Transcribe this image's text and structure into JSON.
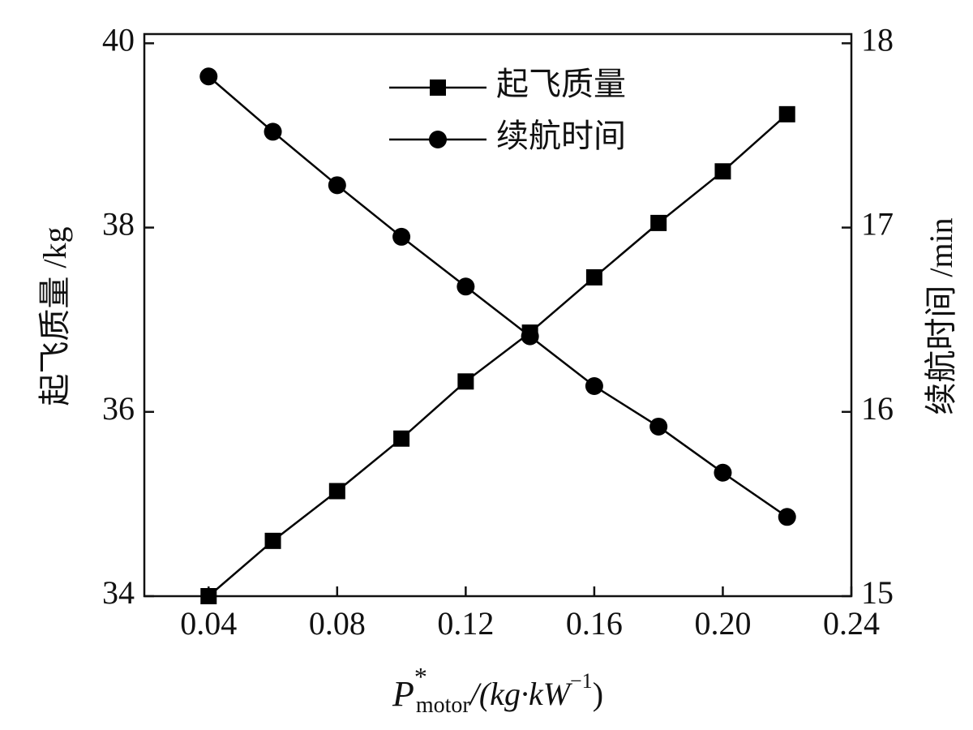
{
  "chart_data": {
    "type": "line",
    "xlabel": {
      "base": "P",
      "sup": "*",
      "sub": "motor",
      "unit": "/(kg·kW",
      "unit_sup": "−1",
      "close": ")"
    },
    "ylabel": "起飞质量 /kg",
    "y2label": "续航时间 /min",
    "x": [
      0.04,
      0.06,
      0.08,
      0.1,
      0.12,
      0.14,
      0.16,
      0.18,
      0.2,
      0.22
    ],
    "series": [
      {
        "name": "起飞质量",
        "color": "#000000",
        "marker": "square",
        "axis": "y",
        "values": [
          34.0,
          34.6,
          35.14,
          35.71,
          36.33,
          36.86,
          37.46,
          38.05,
          38.61,
          39.23
        ]
      },
      {
        "name": "续航时间",
        "color": "#000000",
        "marker": "circle",
        "axis": "y2",
        "values": [
          17.82,
          17.52,
          17.23,
          16.95,
          16.68,
          16.41,
          16.14,
          15.92,
          15.67,
          15.43
        ]
      }
    ],
    "xlim": [
      0.02,
      0.24
    ],
    "xticks": [
      0.04,
      0.08,
      0.12,
      0.16,
      {
        "value": 0.2,
        "label": "0.20"
      },
      0.24
    ],
    "ylim": [
      34,
      40.1
    ],
    "yticks": [
      34,
      36,
      38,
      40
    ],
    "y2lim": [
      15,
      18.05
    ],
    "y2ticks": [
      15,
      16,
      17,
      18
    ],
    "legend": "upper center",
    "grid": false
  }
}
